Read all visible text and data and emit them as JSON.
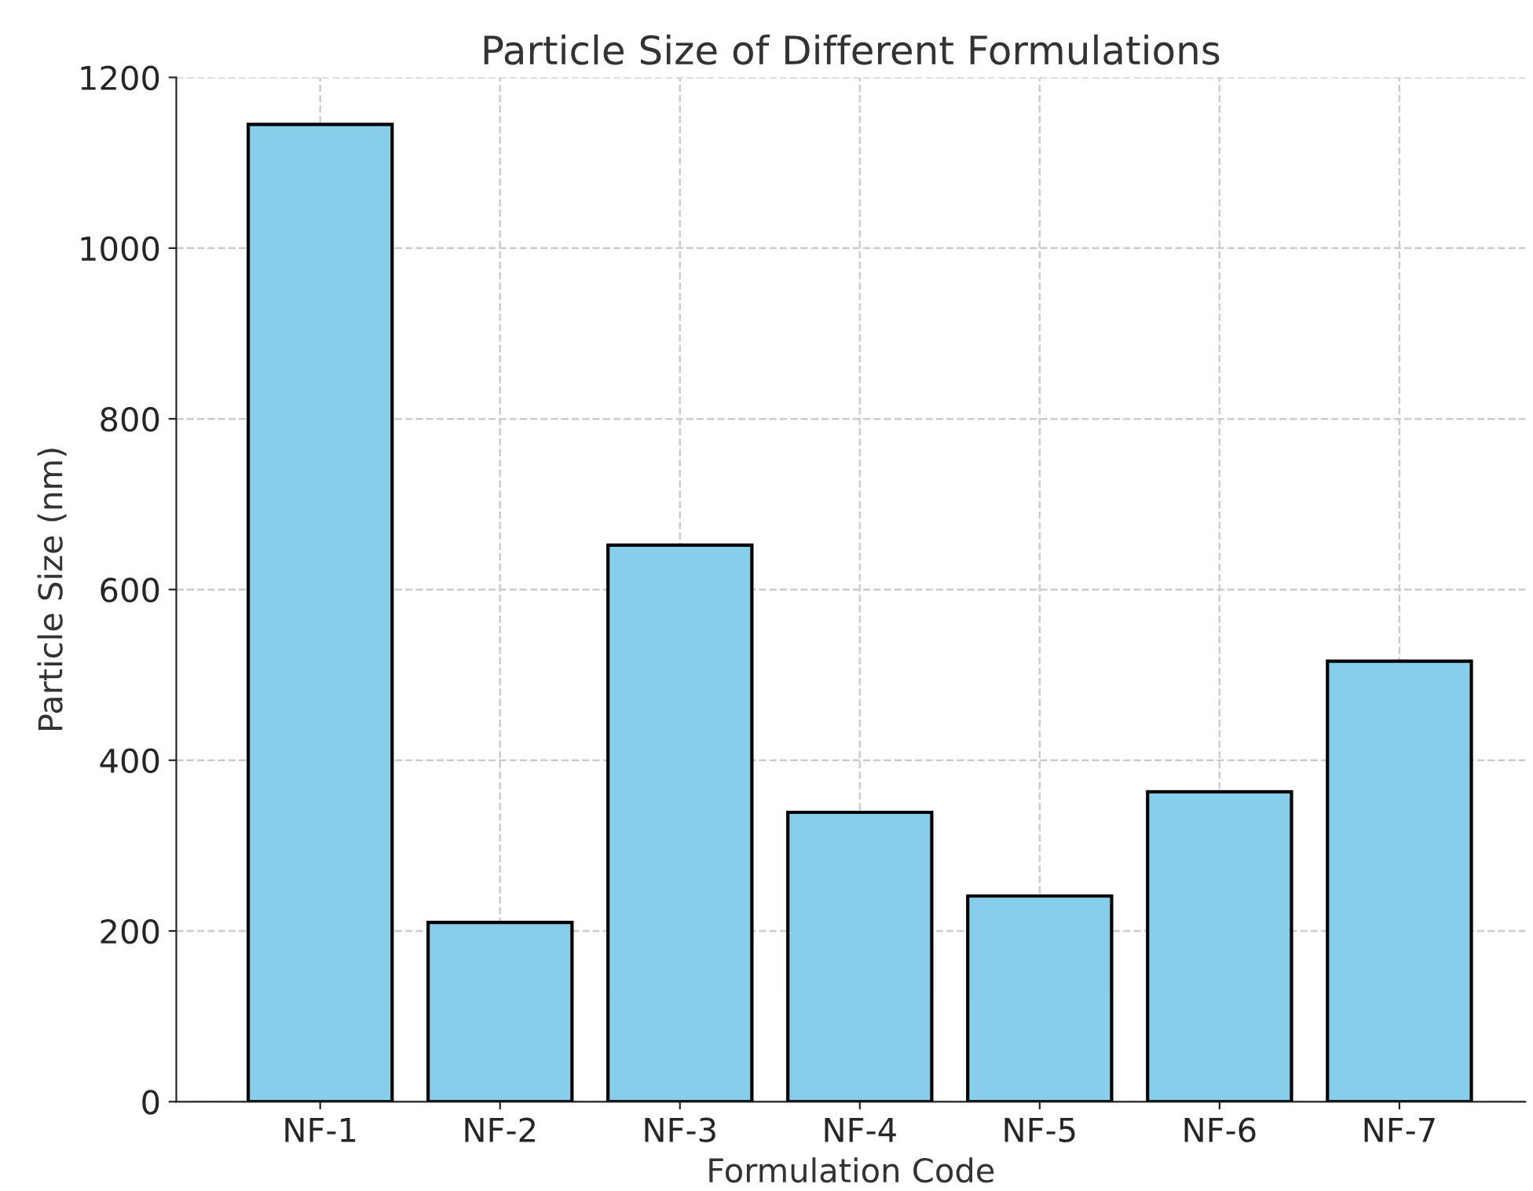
{
  "chart_data": {
    "type": "bar",
    "title": "Particle Size of Different Formulations",
    "xlabel": "Formulation Code",
    "ylabel": "Particle Size (nm)",
    "categories": [
      "NF-1",
      "NF-2",
      "NF-3",
      "NF-4",
      "NF-5",
      "NF-6",
      "NF-7"
    ],
    "values": [
      1145,
      210,
      652,
      339,
      241,
      363,
      516
    ],
    "color": "#87ceeb",
    "ylim": [
      0,
      1200
    ],
    "yticks": [
      0,
      200,
      400,
      600,
      800,
      1000,
      1200
    ],
    "grid": true
  }
}
